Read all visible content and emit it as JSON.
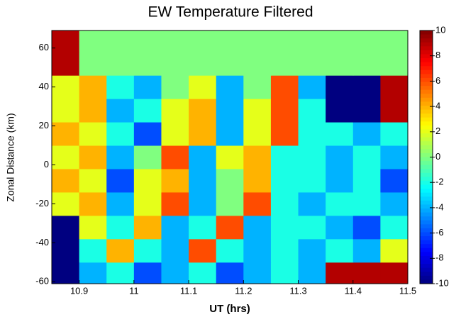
{
  "chart_data": {
    "type": "heatmap",
    "title": "EW Temperature Filtered",
    "x_label": "UT (hrs)",
    "y_label": "Zonal Distance (km)",
    "x": [
      10.875,
      10.925,
      10.975,
      11.025,
      11.075,
      11.125,
      11.175,
      11.225,
      11.275,
      11.325,
      11.375,
      11.425,
      11.475
    ],
    "y": [
      -56,
      -44,
      -32,
      -20,
      -8,
      4,
      16,
      28,
      40,
      52,
      64
    ],
    "z": [
      [
        -10,
        -4,
        -2,
        -6,
        -4,
        -2,
        -6,
        -4,
        -2,
        -4,
        9,
        9,
        9
      ],
      [
        -10,
        -2,
        4,
        -2,
        -4,
        6,
        -2,
        -4,
        -2,
        -4,
        -2,
        -4,
        2
      ],
      [
        -10,
        2,
        -2,
        4,
        -4,
        -2,
        6,
        -4,
        -2,
        -2,
        -4,
        -6,
        -2
      ],
      [
        2,
        4,
        -4,
        2,
        6,
        -4,
        0,
        6,
        -2,
        -4,
        -2,
        -2,
        -4
      ],
      [
        4,
        2,
        -6,
        2,
        4,
        -4,
        0,
        4,
        -2,
        -2,
        -4,
        -2,
        -6
      ],
      [
        2,
        4,
        -4,
        0,
        6,
        -4,
        2,
        4,
        -2,
        -2,
        -4,
        -2,
        -4
      ],
      [
        4,
        2,
        -2,
        -6,
        2,
        4,
        -4,
        2,
        6,
        -2,
        -2,
        -4,
        -2
      ],
      [
        2,
        4,
        -4,
        -2,
        2,
        4,
        -4,
        2,
        6,
        -2,
        -10,
        -10,
        9
      ],
      [
        2,
        4,
        -2,
        -4,
        0,
        2,
        -4,
        0,
        6,
        -4,
        -10,
        -10,
        9
      ],
      [
        9,
        0,
        0,
        0,
        0,
        0,
        0,
        0,
        0,
        0,
        0,
        0,
        0
      ],
      [
        9,
        0,
        0,
        0,
        0,
        0,
        0,
        0,
        0,
        0,
        0,
        0,
        0
      ]
    ],
    "xlim": [
      10.85,
      11.5
    ],
    "xticks": [
      10.9,
      11,
      11.1,
      11.2,
      11.3,
      11.4,
      11.5
    ],
    "ylim": [
      -61,
      69
    ],
    "yticks": [
      -60,
      -40,
      -20,
      0,
      20,
      40,
      60
    ],
    "clim": [
      -10,
      10
    ],
    "cticks": [
      -10,
      -8,
      -6,
      -4,
      -2,
      0,
      2,
      4,
      6,
      8,
      10
    ],
    "colormap": "jet"
  }
}
